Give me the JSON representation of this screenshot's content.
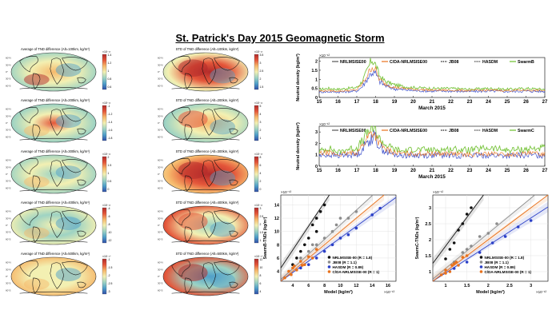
{
  "figure": {
    "title": "St. Patrick's Day 2015 Geomagnetic Storm"
  },
  "left_column": {
    "panels": [
      {
        "title": "Average of TND difference (Alt=100km, kg/m³)",
        "cbar_exp": "×10⁻¹³",
        "cbar_ticks": [
          "1.4",
          "1.2",
          "1",
          "0.8",
          "0.6"
        ]
      },
      {
        "title": "Average of TND difference (Alt=200km, kg/m³)",
        "cbar_exp": "×10⁻¹²",
        "cbar_ticks": [
          "-1",
          "-1.2",
          "-1.4",
          "-1.6",
          "-1.8"
        ]
      },
      {
        "title": "Average of TND difference (Alt=300km, kg/m³)",
        "cbar_exp": "×10⁻¹²",
        "cbar_ticks": [
          "2",
          "1.5",
          "1",
          "0.5",
          "0"
        ]
      },
      {
        "title": "Average of TND difference (Alt=400km, kg/m³)",
        "cbar_exp": "×10⁻¹³",
        "cbar_ticks": [
          "-4",
          "-6",
          "-8",
          "-10",
          "-12"
        ]
      },
      {
        "title": "Average of TND difference (Alt=500km, kg/m³)",
        "cbar_exp": "×10⁻¹⁴",
        "cbar_ticks": [
          "-1",
          "-1.5",
          "-2",
          "-2.5",
          "-3"
        ]
      }
    ]
  },
  "middle_column": {
    "panels": [
      {
        "title": "STD of TND difference (Alt=100km, kg/m³)",
        "cbar_exp": "×10⁻¹³",
        "cbar_ticks": [
          "3.5",
          "3",
          "2.5",
          "2",
          "1.5"
        ]
      },
      {
        "title": "STD of TND difference (Alt=200km, kg/m³)",
        "cbar_exp": "×10⁻¹²",
        "cbar_ticks": [
          "5",
          "4",
          "3",
          "2",
          "1"
        ]
      },
      {
        "title": "STD of TND difference (Alt=300km, kg/m³)",
        "cbar_exp": "×10⁻¹³",
        "cbar_ticks": [
          "8",
          "6",
          "4",
          "2",
          "0"
        ]
      },
      {
        "title": "STD of TND difference (Alt=400km, kg/m³)",
        "cbar_exp": "×10⁻¹³",
        "cbar_ticks": [
          "3",
          "2.5",
          "2",
          "1.5",
          "1"
        ]
      },
      {
        "title": "STD of TND difference (Alt=500km, kg/m³)",
        "cbar_exp": "×10⁻¹⁴",
        "cbar_ticks": [
          "12",
          "10",
          "8",
          "6",
          "4"
        ]
      }
    ]
  },
  "colors": {
    "nrlmsise00": "#555555",
    "cda_nrlmsise00": "#e8711c",
    "jb08": "#222222",
    "hasdm": "#1a1a1a",
    "swarm": "#6bbf2a",
    "scatter_nrl": "#111111",
    "scatter_jb08": "#8c8c8c",
    "scatter_hasdm": "#2a3fc7",
    "scatter_cda": "#e8711c",
    "cmap": [
      "#2f4ea8",
      "#4f9fc9",
      "#9ed3c3",
      "#f3f0b2",
      "#f6b96c",
      "#e4563a",
      "#b22a2a"
    ]
  },
  "chart_data": [
    {
      "type": "line",
      "exponent": "×10⁻¹²",
      "ylabel": "Neutral density (kg/m³)",
      "xlabel": "March 2015",
      "x_ticks": [
        "15",
        "16",
        "17",
        "18",
        "19",
        "20",
        "21",
        "22",
        "23",
        "24",
        "25",
        "26",
        "27"
      ],
      "y_ticks": [
        "0",
        "0.5",
        "1",
        "1.5",
        "2"
      ],
      "ylim": [
        0,
        2.2
      ],
      "legend": [
        "NRLMSISE00",
        "C/DA-NRLMSISE00",
        "JB08",
        "HASDM",
        "SwarmB"
      ],
      "x": [
        15,
        15.5,
        16,
        16.5,
        17,
        17.3,
        17.6,
        17.8,
        18,
        18.2,
        18.5,
        19,
        19.5,
        20,
        21,
        22,
        23,
        24,
        25,
        26,
        27
      ],
      "series": [
        {
          "name": "SwarmB",
          "values": [
            0.45,
            0.5,
            0.45,
            0.5,
            0.55,
            0.9,
            1.6,
            2.1,
            1.8,
            1.2,
            0.9,
            0.7,
            0.6,
            0.55,
            0.5,
            0.5,
            0.45,
            0.5,
            0.45,
            0.5,
            0.45
          ]
        },
        {
          "name": "C/DA-NRLMSISE00",
          "values": [
            0.35,
            0.38,
            0.35,
            0.38,
            0.42,
            0.75,
            1.3,
            1.7,
            1.5,
            1.0,
            0.75,
            0.55,
            0.5,
            0.45,
            0.4,
            0.4,
            0.38,
            0.4,
            0.38,
            0.4,
            0.38
          ]
        },
        {
          "name": "NRLMSISE00",
          "values": [
            0.3,
            0.32,
            0.3,
            0.32,
            0.36,
            0.6,
            1.1,
            1.4,
            1.3,
            0.9,
            0.65,
            0.48,
            0.42,
            0.38,
            0.35,
            0.35,
            0.33,
            0.35,
            0.33,
            0.35,
            0.33
          ]
        }
      ]
    },
    {
      "type": "line",
      "exponent": "×10⁻¹²",
      "ylabel": "Neutral density (kg/m³)",
      "xlabel": "March 2015",
      "x_ticks": [
        "15",
        "16",
        "17",
        "18",
        "19",
        "20",
        "21",
        "22",
        "23",
        "24",
        "25",
        "26",
        "27"
      ],
      "y_ticks": [
        "0",
        "1",
        "2",
        "3"
      ],
      "ylim": [
        0,
        3.5
      ],
      "legend": [
        "NRLMSISE00",
        "C/DA-NRLMSISE00",
        "JB08",
        "HASDM",
        "SwarmC"
      ],
      "x": [
        15,
        15.5,
        16,
        16.5,
        17,
        17.3,
        17.6,
        17.8,
        18,
        18.2,
        18.5,
        19,
        19.5,
        20,
        21,
        22,
        23,
        24,
        25,
        26,
        27
      ],
      "series": [
        {
          "name": "SwarmC",
          "values": [
            1.3,
            1.6,
            1.2,
            1.5,
            1.6,
            2.2,
            3.0,
            3.4,
            3.1,
            2.4,
            1.9,
            1.5,
            1.3,
            1.5,
            1.4,
            1.5,
            1.4,
            1.6,
            1.4,
            1.5,
            1.6
          ]
        },
        {
          "name": "C/DA-NRLMSISE00",
          "values": [
            1.1,
            1.2,
            1.0,
            1.1,
            1.2,
            1.8,
            2.6,
            3.0,
            2.7,
            2.0,
            1.5,
            1.2,
            1.1,
            1.1,
            1.1,
            1.1,
            1.0,
            1.1,
            1.0,
            1.1,
            1.1
          ]
        },
        {
          "name": "NRLMSISE00",
          "values": [
            0.9,
            1.0,
            0.9,
            1.0,
            1.0,
            1.5,
            2.2,
            2.6,
            2.4,
            1.8,
            1.3,
            1.0,
            0.95,
            0.95,
            0.95,
            0.95,
            0.9,
            0.95,
            0.9,
            0.95,
            0.95
          ]
        }
      ]
    },
    {
      "type": "scatter",
      "exponent": "×10⁻¹³",
      "ylabel": "SwarmB-TNDs (kg/m³)",
      "xlabel": "Model (kg/m³)",
      "x_ticks": [
        "4",
        "6",
        "8",
        "10",
        "12",
        "14",
        "16"
      ],
      "y_ticks": [
        "4",
        "6",
        "8",
        "10",
        "12",
        "14"
      ],
      "xlim": [
        2.5,
        17
      ],
      "ylim": [
        2.5,
        15.5
      ],
      "legend": [
        "NRLMSISE-00 (R = 1.8)",
        "JB08 (R = 1.1)",
        "HASDM (R = 0.89)",
        "C/DA-NRLMSISE-00 (R = 1)"
      ],
      "series": [
        {
          "name": "NRLMSISE-00",
          "slope": 1.8,
          "points": [
            [
              4,
              5
            ],
            [
              5,
              7
            ],
            [
              6,
              9
            ],
            [
              6.5,
              11
            ],
            [
              7,
              12
            ],
            [
              7.5,
              13
            ],
            [
              8,
              14
            ],
            [
              5.5,
              8
            ],
            [
              4.5,
              6
            ],
            [
              7,
              10
            ]
          ]
        },
        {
          "name": "JB08",
          "slope": 1.1,
          "points": [
            [
              5,
              6
            ],
            [
              6,
              7
            ],
            [
              7,
              8
            ],
            [
              8,
              9
            ],
            [
              9,
              10
            ],
            [
              10,
              12
            ],
            [
              11,
              12
            ],
            [
              12,
              13
            ],
            [
              6.5,
              8
            ],
            [
              9.5,
              11
            ]
          ]
        },
        {
          "name": "HASDM",
          "slope": 0.89,
          "points": [
            [
              5,
              4.5
            ],
            [
              6,
              5
            ],
            [
              8,
              7
            ],
            [
              10,
              9
            ],
            [
              12,
              10.5
            ],
            [
              14,
              12.5
            ],
            [
              15,
              13.5
            ],
            [
              7,
              6
            ],
            [
              9,
              8
            ],
            [
              11,
              9.5
            ]
          ]
        },
        {
          "name": "C/DA-NRLMSISE-00",
          "slope": 1.0,
          "points": [
            [
              3,
              3
            ],
            [
              3.5,
              4
            ],
            [
              4,
              4.5
            ],
            [
              4.5,
              4.2
            ],
            [
              5,
              5.5
            ],
            [
              5.5,
              5
            ],
            [
              6,
              6.2
            ],
            [
              6.5,
              6
            ],
            [
              7,
              7.3
            ],
            [
              3.8,
              3.5
            ],
            [
              4.2,
              4.8
            ],
            [
              5.2,
              4.9
            ]
          ]
        }
      ]
    },
    {
      "type": "scatter",
      "exponent": "×10⁻¹²",
      "ylabel": "SwarmC-TNDs (kg/m³)",
      "xlabel": "Model (kg/m³)",
      "x_ticks": [
        "1",
        "1.5",
        "2",
        "2.5",
        "3"
      ],
      "y_ticks": [
        "1",
        "1.5",
        "2",
        "2.5",
        "3"
      ],
      "xlim": [
        0.7,
        3.4
      ],
      "ylim": [
        0.7,
        3.4
      ],
      "legend": [
        "NRLMSISE-00 (R = 1.8)",
        "JB08 (R = 1.1)",
        "HASDM (R = 0.89)",
        "C/DA-NRLMSISE-00 (R = 1)"
      ],
      "series": [
        {
          "name": "NRLMSISE-00",
          "slope": 1.8,
          "points": [
            [
              1.0,
              1.4
            ],
            [
              1.2,
              1.9
            ],
            [
              1.3,
              2.3
            ],
            [
              1.5,
              2.8
            ],
            [
              1.6,
              3.0
            ],
            [
              1.1,
              1.7
            ],
            [
              1.4,
              2.5
            ]
          ]
        },
        {
          "name": "JB08",
          "slope": 1.1,
          "points": [
            [
              1.2,
              1.3
            ],
            [
              1.4,
              1.6
            ],
            [
              1.6,
              1.8
            ],
            [
              1.8,
              2.1
            ],
            [
              2.0,
              2.2
            ],
            [
              2.2,
              2.5
            ],
            [
              1.5,
              1.7
            ]
          ]
        },
        {
          "name": "HASDM",
          "slope": 0.89,
          "points": [
            [
              1.2,
              1.1
            ],
            [
              1.5,
              1.3
            ],
            [
              1.8,
              1.6
            ],
            [
              2.1,
              1.9
            ],
            [
              2.4,
              2.1
            ],
            [
              2.7,
              2.4
            ],
            [
              3.0,
              2.6
            ]
          ]
        },
        {
          "name": "C/DA-NRLMSISE-00",
          "slope": 1.0,
          "points": [
            [
              0.9,
              0.9
            ],
            [
              1.0,
              1.05
            ],
            [
              1.1,
              1.0
            ],
            [
              1.2,
              1.25
            ],
            [
              1.3,
              1.2
            ],
            [
              1.4,
              1.45
            ],
            [
              1.5,
              1.5
            ],
            [
              1.0,
              0.95
            ],
            [
              1.15,
              1.2
            ],
            [
              1.25,
              1.3
            ]
          ]
        }
      ]
    }
  ]
}
